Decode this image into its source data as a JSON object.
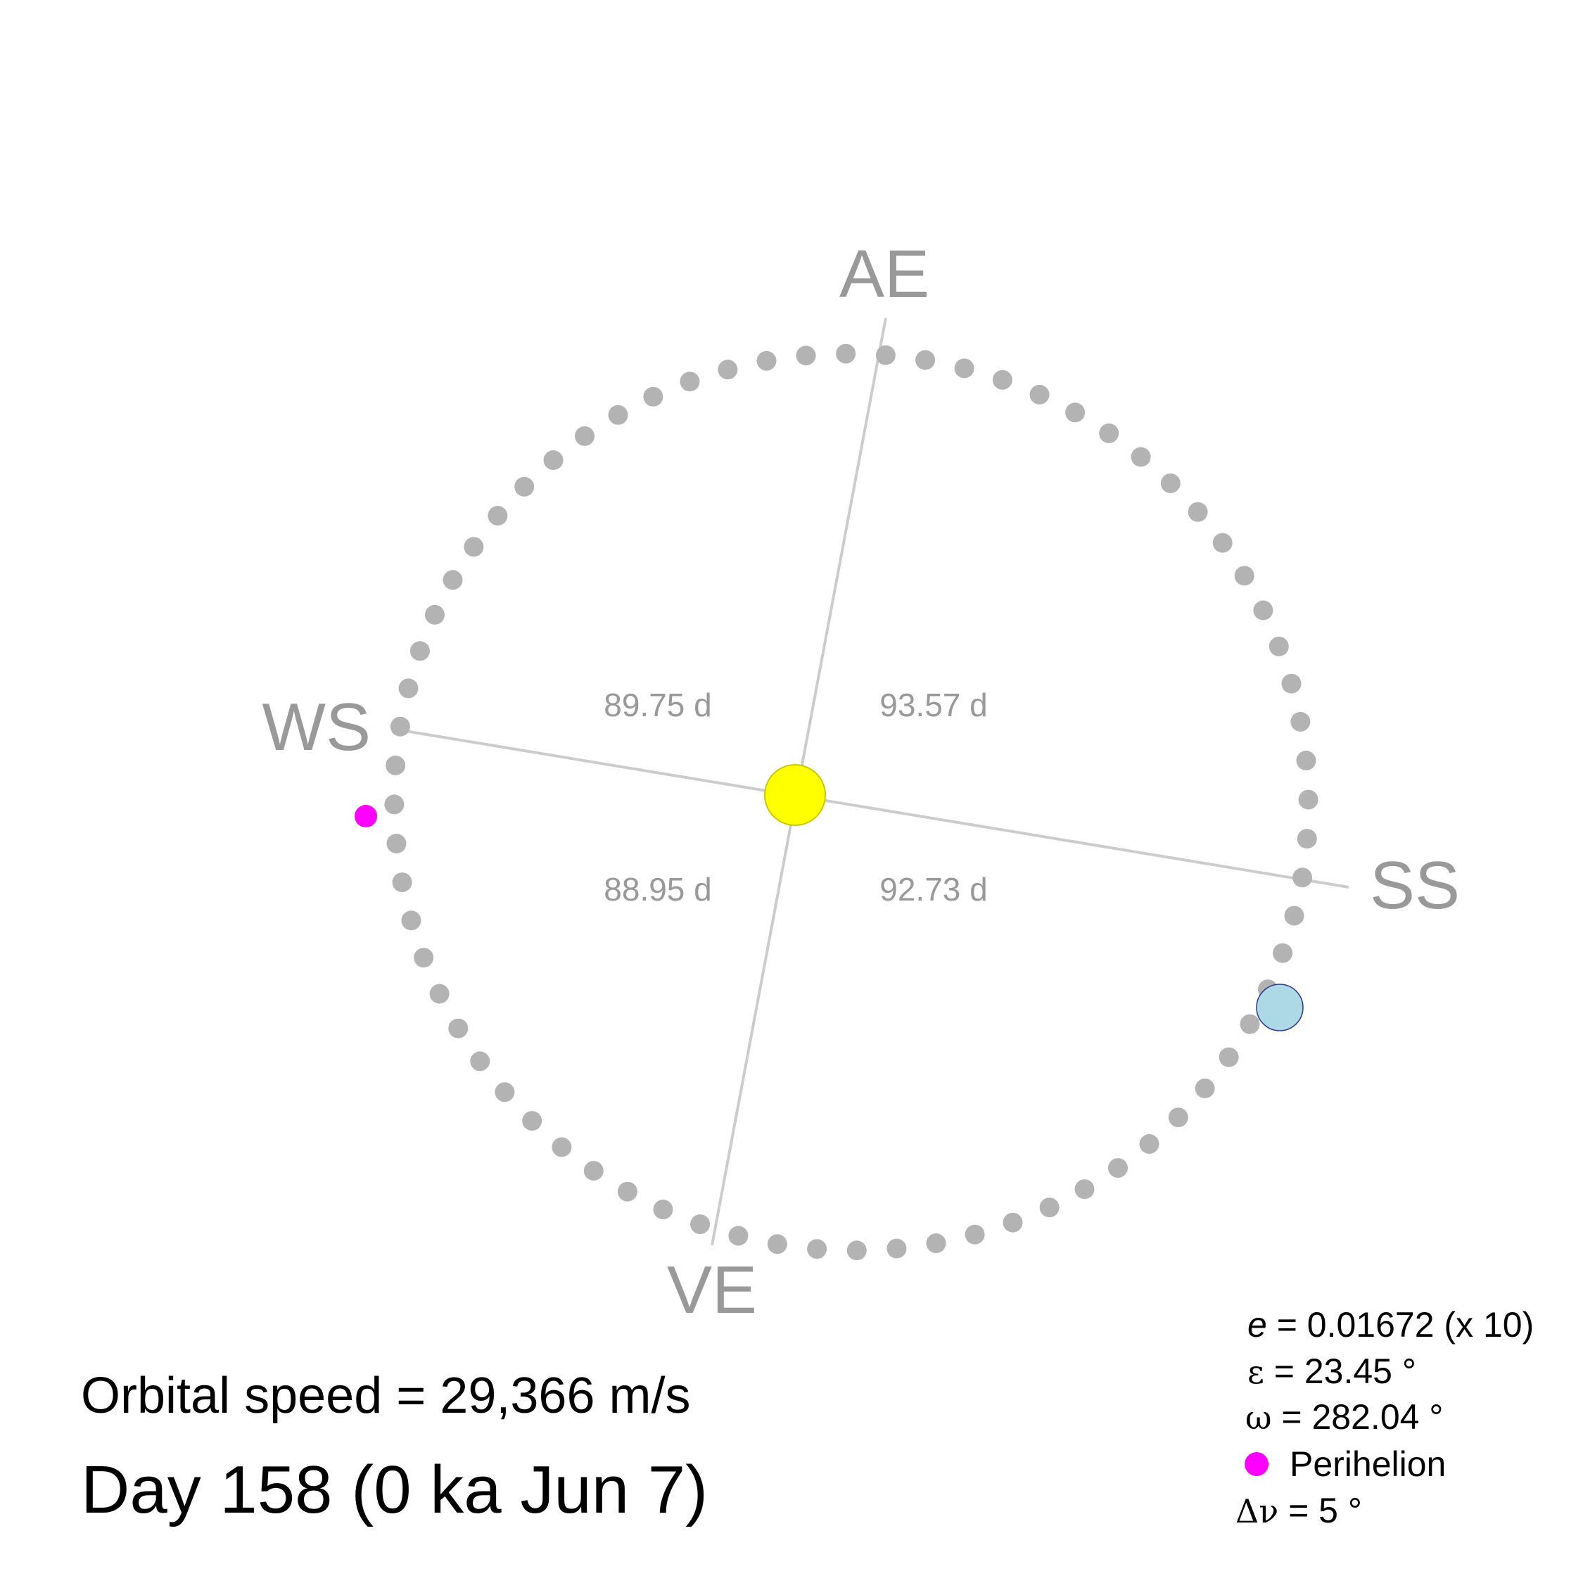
{
  "colors": {
    "orbit_dot": "#b3b3b3",
    "axis_line": "#cccccc",
    "label_gray": "#999999",
    "sun_fill": "#ffff00",
    "sun_stroke": "#c8c800",
    "earth_fill": "#add8e6",
    "earth_stroke": "#2b3a8c",
    "perihelion": "#ff00ff"
  },
  "seasons": {
    "ae": "AE",
    "ss": "SS",
    "ve": "VE",
    "ws": "WS"
  },
  "season_lengths": {
    "upper_left": "89.75 d",
    "upper_right": "93.57 d",
    "lower_left": "88.95 d",
    "lower_right": "92.73 d"
  },
  "info": {
    "orbital_speed": "Orbital speed = 29,366 m/s",
    "day": "Day 158  (0 ka Jun  7)"
  },
  "legend": {
    "e_symbol": "e",
    "e_value": " = 0.01672 (x 10)",
    "epsilon_symbol": "ε",
    "epsilon_value": " = 23.45 °",
    "omega_symbol": "ω",
    "omega_value": " = 282.04 °",
    "perihelion_label": "Perihelion",
    "dnu_symbol": "Δν",
    "dnu_value": " =  5 °"
  },
  "orbit": {
    "step_degrees": 5,
    "dot_count": 72
  }
}
